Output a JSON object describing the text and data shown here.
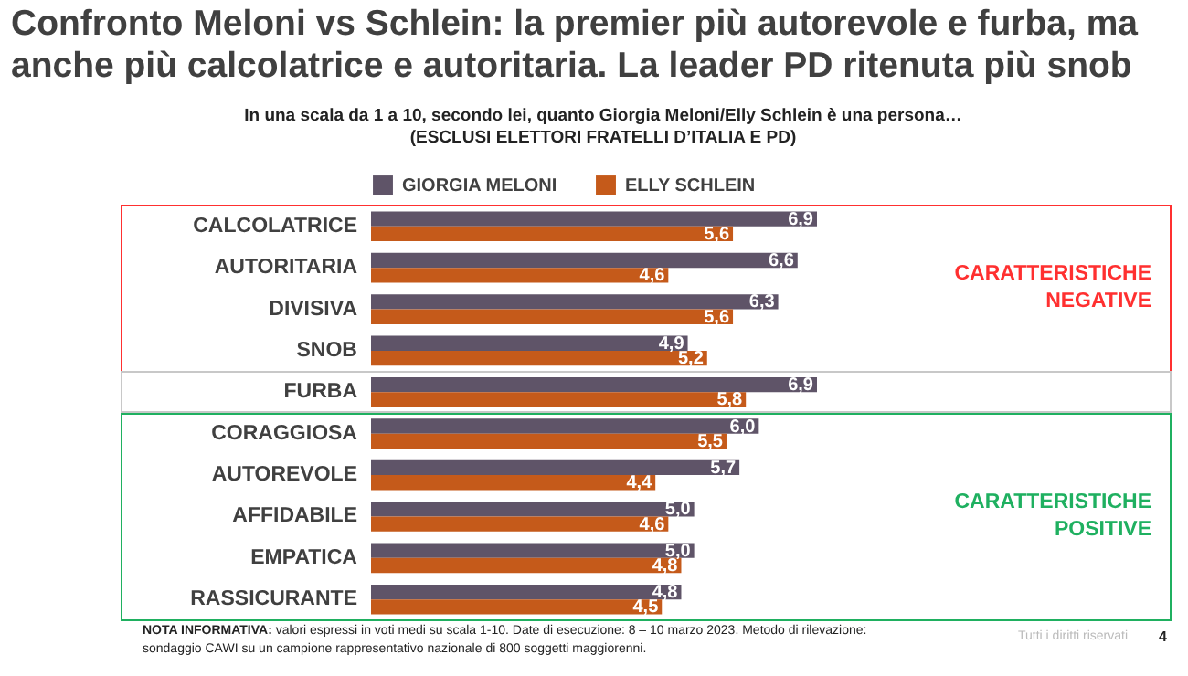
{
  "chart_data": {
    "type": "bar",
    "orientation": "horizontal",
    "title": "Confronto Meloni vs Schlein: la premier più autorevole e furba, ma anche più calcolatrice e autoritaria. La leader PD ritenuta più snob",
    "subtitle": "In una scala da 1 a 10, secondo lei, quanto Giorgia Meloni/Elly Schlein è una persona…\n(ESCLUSI ELETTORI FRATELLI D’ITALIA E PD)",
    "categories": [
      "CALCOLATRICE",
      "AUTORITARIA",
      "DIVISIVA",
      "SNOB",
      "FURBA",
      "CORAGGIOSA",
      "AUTOREVOLE",
      "AFFIDABILE",
      "EMPATICA",
      "RASSICURANTE"
    ],
    "series": [
      {
        "name": "GIORGIA MELONI",
        "color": "#5f5468",
        "values": [
          6.9,
          6.6,
          6.3,
          4.9,
          6.9,
          6.0,
          5.7,
          5.0,
          5.0,
          4.8
        ],
        "value_labels": [
          "6,9",
          "6,6",
          "6,3",
          "4,9",
          "6,9",
          "6,0",
          "5,7",
          "5,0",
          "5,0",
          "4,8"
        ]
      },
      {
        "name": "ELLY SCHLEIN",
        "color": "#c55a1a",
        "values": [
          5.6,
          4.6,
          5.6,
          5.2,
          5.8,
          5.5,
          4.4,
          4.6,
          4.8,
          4.5
        ],
        "value_labels": [
          "5,6",
          "4,6",
          "5,6",
          "5,2",
          "5,8",
          "5,5",
          "4,4",
          "4,6",
          "4,8",
          "4,5"
        ]
      }
    ],
    "tick_labels": "y",
    "legend": "top",
    "annotations": [
      "NOTA INFORMATIVA: valori espressi in voti medi su scala 1-10. Date di esecuzione: 8 – 10 marzo 2023. Metodo di rilevazione: sondaggio CAWI su un campione rappresentativo nazionale di 800 soggetti maggiorenni.",
      "Tutti i diritti riservati",
      "4",
      "CARATTERISTICHE NEGATIVE",
      "CARATTERISTICHE POSITIVE"
    ]
  }
}
